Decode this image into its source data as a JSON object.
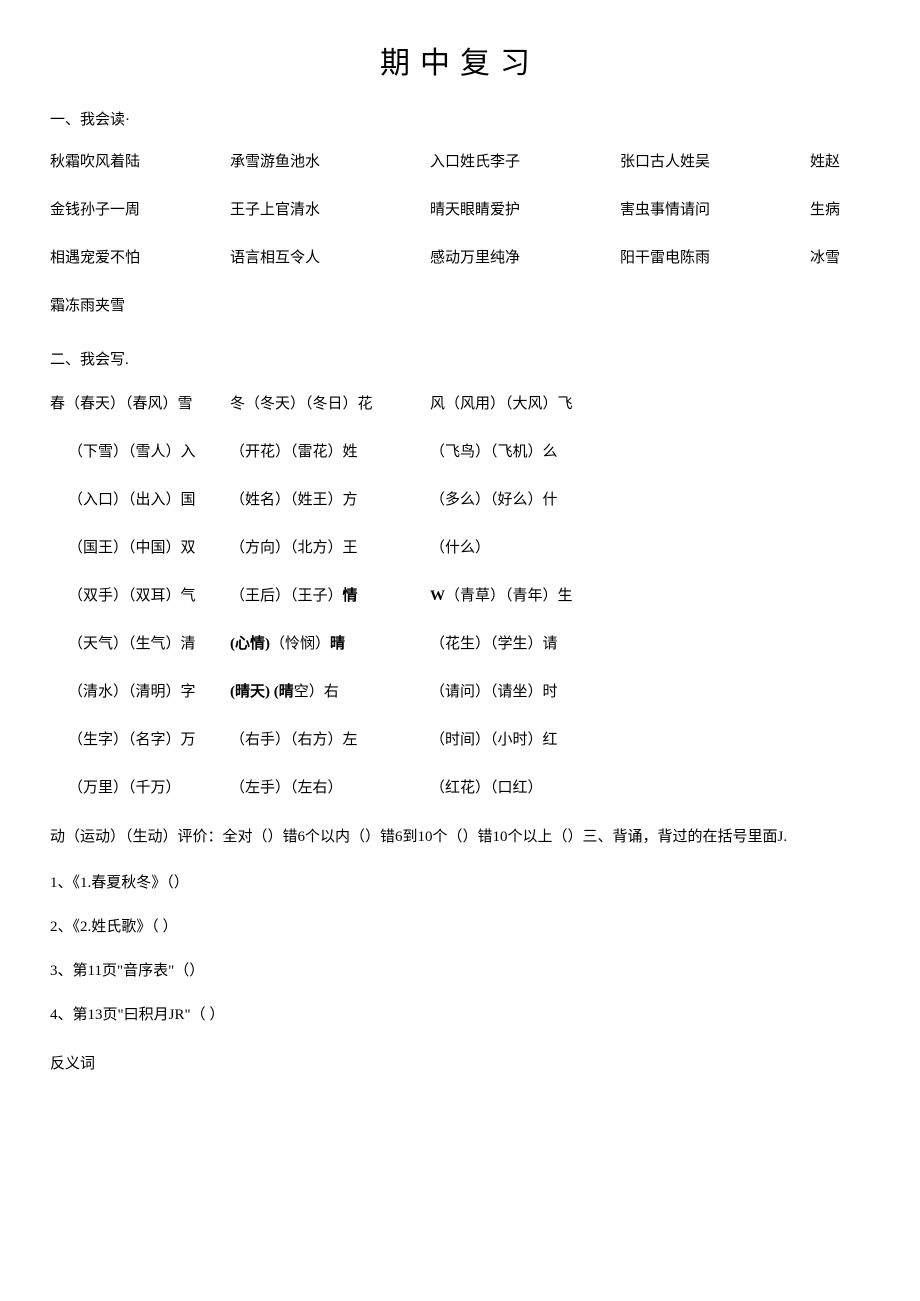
{
  "title": "期中复习",
  "section1": {
    "header": "一、我会读·",
    "rows": [
      [
        "秋霜吹风着陆",
        "承雪游鱼池水",
        "入口姓氏李子",
        "张口古人姓吴",
        "姓赵"
      ],
      [
        "金钱孙子一周",
        "王子上官清水",
        "晴天眼睛爱护",
        "害虫事情请问",
        "生病"
      ],
      [
        "相遇宠爱不怕",
        "语言相互令人",
        "感动万里纯净",
        "阳干雷电陈雨",
        "冰雪"
      ],
      [
        "霜冻雨夹雪",
        "",
        "",
        "",
        ""
      ]
    ],
    "hidden_row": [
      "",
      "",
      "",
      "",
      ""
    ]
  },
  "section2": {
    "header": "二、我会写.",
    "rows": [
      {
        "cells": [
          "春（春天）（春风）雪",
          "冬（冬天）（冬日）花",
          "风（风用）（大风）飞"
        ],
        "indent": false
      },
      {
        "cells": [
          "（下雪）（雪人）入",
          "（开花）（雷花）姓",
          "（飞鸟）（飞机）么"
        ],
        "indent": true
      },
      {
        "cells": [
          "（入口）（出入）国",
          "（姓名）（姓王）方",
          "（多么）（好么）什"
        ],
        "indent": true
      },
      {
        "cells": [
          "（国王）（中国）双",
          "（方向）（北方）王",
          "（什么）"
        ],
        "indent": true
      },
      {
        "cells": [
          "（双手）（双耳）气",
          "（王后）（王子）",
          "（青草）（青年）生"
        ],
        "indent": true,
        "mid_bold": "情",
        "mid_extra": "W"
      },
      {
        "cells": [
          "（天气）（生气）清",
          "",
          "（花生）（学生）请"
        ],
        "indent": true,
        "mid_html": true,
        "mid_parts": [
          "(心情)",
          "（怜悯）",
          "晴"
        ]
      },
      {
        "cells": [
          "（清水）（清明）字",
          "",
          "（请问）（请坐）时"
        ],
        "indent": true,
        "mid_html2": true,
        "mid_parts2": [
          "(晴天)",
          "(晴",
          "空）右"
        ]
      },
      {
        "cells": [
          "（生字）（名字）万",
          "（右手）（右方）左",
          "（时间）（小时）红"
        ],
        "indent": true
      },
      {
        "cells": [
          "（万里）（千万）",
          "（左手）（左右）",
          "（红花）（口红）"
        ],
        "indent": true
      }
    ],
    "eval": "动（运动）（生动）评价：全对（）错6个以内（）错6到10个（）错10个以上（）三、背诵，背过的在括号里面J."
  },
  "section3": {
    "items": [
      "1、《1.春夏秋冬》（）",
      "2、《2.姓氏歌》（ ）",
      "3、第11页\"音序表\"（）",
      "4、第13页\"曰积月JR\"（ ）"
    ]
  },
  "antonym": "反义词",
  "typography": {
    "title_fontsize": 30,
    "body_fontsize": 15,
    "text_color": "#000000",
    "background_color": "#ffffff",
    "font_family": "SimSun"
  }
}
